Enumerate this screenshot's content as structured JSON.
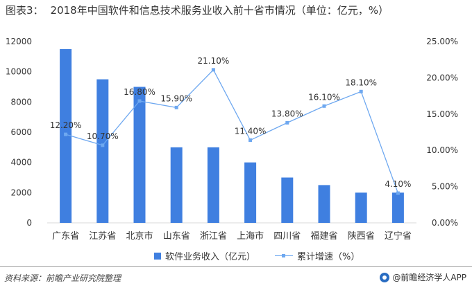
{
  "title": {
    "prefix": "图表3：",
    "text": "2018年中国软件和信息技术服务业收入前十省市情况（单位：亿元，%）"
  },
  "colors": {
    "bar": "#3f7fe0",
    "line": "#6ea8f0",
    "axis": "#d9d9d9",
    "text": "#333333"
  },
  "chart_data": {
    "type": "bar",
    "categories": [
      "广东省",
      "江苏省",
      "北京市",
      "山东省",
      "浙江省",
      "上海市",
      "四川省",
      "福建省",
      "陕西省",
      "辽宁省"
    ],
    "series": [
      {
        "name": "软件业务收入（亿元）",
        "type": "bar",
        "axis": "left",
        "values": [
          11500,
          9500,
          9000,
          5000,
          5000,
          4000,
          3000,
          2500,
          2000,
          2000
        ]
      },
      {
        "name": "累计增速（%）",
        "type": "line",
        "axis": "right",
        "values": [
          12.2,
          10.7,
          16.8,
          15.9,
          21.1,
          11.4,
          13.8,
          16.1,
          18.1,
          4.1
        ],
        "labels": [
          "12.20%",
          "10.70%",
          "16.80%",
          "15.90%",
          "21.10%",
          "11.40%",
          "13.80%",
          "16.10%",
          "18.10%",
          "4.10%"
        ]
      }
    ],
    "left_axis": {
      "min": 0,
      "max": 12000,
      "ticks": [
        0,
        2000,
        4000,
        6000,
        8000,
        10000,
        12000
      ]
    },
    "right_axis": {
      "min": 0,
      "max": 25,
      "ticks": [
        0,
        5,
        10,
        15,
        20,
        25
      ],
      "tick_labels": [
        "0.00%",
        "5.00%",
        "10.00%",
        "15.00%",
        "20.00%",
        "25.00%"
      ]
    },
    "legend": "bottom",
    "grid": false
  },
  "legend": {
    "bar_label": "软件业务收入（亿元）",
    "line_label": "累计增速（%）"
  },
  "footer": {
    "source": "资料来源：前瞻产业研究院整理",
    "brand": "@前瞻经济学人APP"
  }
}
